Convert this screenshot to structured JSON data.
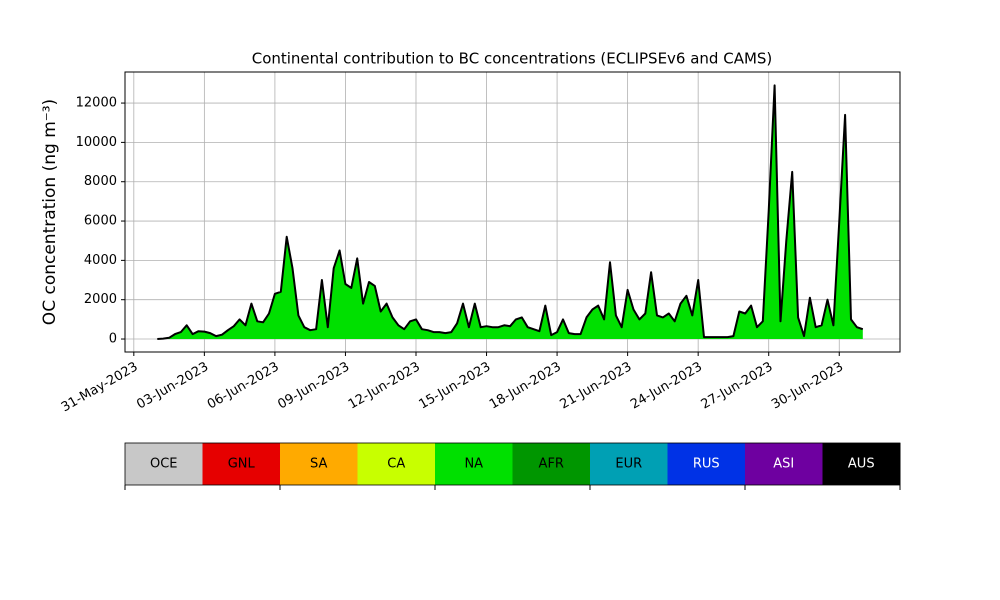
{
  "chart_data": {
    "type": "area",
    "title": "Continental contribution to BC concentrations (ECLIPSEv6 and CAMS)",
    "y_label": "OC concentration (ng m⁻³)",
    "x": [
      "2023-06-01 00:00",
      "2023-06-01 06:00",
      "2023-06-01 12:00",
      "2023-06-01 18:00",
      "2023-06-02 00:00",
      "2023-06-02 06:00",
      "2023-06-02 12:00",
      "2023-06-02 18:00",
      "2023-06-03 00:00",
      "2023-06-03 06:00",
      "2023-06-03 12:00",
      "2023-06-03 18:00",
      "2023-06-04 00:00",
      "2023-06-04 06:00",
      "2023-06-04 12:00",
      "2023-06-04 18:00",
      "2023-06-05 00:00",
      "2023-06-05 06:00",
      "2023-06-05 12:00",
      "2023-06-05 18:00",
      "2023-06-06 00:00",
      "2023-06-06 06:00",
      "2023-06-06 12:00",
      "2023-06-06 18:00",
      "2023-06-07 00:00",
      "2023-06-07 06:00",
      "2023-06-07 12:00",
      "2023-06-07 18:00",
      "2023-06-08 00:00",
      "2023-06-08 06:00",
      "2023-06-08 12:00",
      "2023-06-08 18:00",
      "2023-06-09 00:00",
      "2023-06-09 06:00",
      "2023-06-09 12:00",
      "2023-06-09 18:00",
      "2023-06-10 00:00",
      "2023-06-10 06:00",
      "2023-06-10 12:00",
      "2023-06-10 18:00",
      "2023-06-11 00:00",
      "2023-06-11 06:00",
      "2023-06-11 12:00",
      "2023-06-11 18:00",
      "2023-06-12 00:00",
      "2023-06-12 06:00",
      "2023-06-12 12:00",
      "2023-06-12 18:00",
      "2023-06-13 00:00",
      "2023-06-13 06:00",
      "2023-06-13 12:00",
      "2023-06-13 18:00",
      "2023-06-14 00:00",
      "2023-06-14 06:00",
      "2023-06-14 12:00",
      "2023-06-14 18:00",
      "2023-06-15 00:00",
      "2023-06-15 06:00",
      "2023-06-15 12:00",
      "2023-06-15 18:00",
      "2023-06-16 00:00",
      "2023-06-16 06:00",
      "2023-06-16 12:00",
      "2023-06-16 18:00",
      "2023-06-17 00:00",
      "2023-06-17 06:00",
      "2023-06-17 12:00",
      "2023-06-17 18:00",
      "2023-06-18 00:00",
      "2023-06-18 06:00",
      "2023-06-18 12:00",
      "2023-06-18 18:00",
      "2023-06-19 00:00",
      "2023-06-19 06:00",
      "2023-06-19 12:00",
      "2023-06-19 18:00",
      "2023-06-20 00:00",
      "2023-06-20 06:00",
      "2023-06-20 12:00",
      "2023-06-20 18:00",
      "2023-06-21 00:00",
      "2023-06-21 06:00",
      "2023-06-21 12:00",
      "2023-06-21 18:00",
      "2023-06-22 00:00",
      "2023-06-22 06:00",
      "2023-06-22 12:00",
      "2023-06-22 18:00",
      "2023-06-23 00:00",
      "2023-06-23 06:00",
      "2023-06-23 12:00",
      "2023-06-23 18:00",
      "2023-06-24 00:00",
      "2023-06-24 06:00",
      "2023-06-24 12:00",
      "2023-06-24 18:00",
      "2023-06-25 00:00",
      "2023-06-25 06:00",
      "2023-06-25 12:00",
      "2023-06-25 18:00",
      "2023-06-26 00:00",
      "2023-06-26 06:00",
      "2023-06-26 12:00",
      "2023-06-26 18:00",
      "2023-06-27 00:00",
      "2023-06-27 06:00",
      "2023-06-27 12:00",
      "2023-06-27 18:00",
      "2023-06-28 00:00",
      "2023-06-28 06:00",
      "2023-06-28 12:00",
      "2023-06-28 18:00",
      "2023-06-29 00:00",
      "2023-06-29 06:00",
      "2023-06-29 12:00",
      "2023-06-29 18:00",
      "2023-06-30 00:00",
      "2023-06-30 06:00",
      "2023-06-30 12:00",
      "2023-06-30 18:00",
      "2023-07-01 00:00"
    ],
    "series": [
      {
        "name": "NA",
        "color": "#00e000",
        "values": [
          0,
          20,
          60,
          250,
          350,
          700,
          250,
          400,
          380,
          300,
          150,
          220,
          450,
          650,
          1000,
          700,
          1800,
          900,
          850,
          1300,
          2300,
          2400,
          5200,
          3600,
          1200,
          600,
          450,
          500,
          3000,
          600,
          3600,
          4500,
          2800,
          2600,
          4100,
          1800,
          2900,
          2700,
          1400,
          1800,
          1100,
          700,
          500,
          900,
          1000,
          500,
          450,
          350,
          350,
          300,
          350,
          800,
          1800,
          600,
          1800,
          600,
          650,
          600,
          600,
          700,
          650,
          1000,
          1100,
          600,
          500,
          400,
          1700,
          200,
          350,
          1000,
          300,
          250,
          250,
          1100,
          1500,
          1700,
          1000,
          3900,
          1200,
          600,
          2500,
          1500,
          1000,
          1300,
          3400,
          1200,
          1100,
          1300,
          900,
          1800,
          2200,
          1200,
          3000,
          100,
          100,
          100,
          100,
          100,
          150,
          1400,
          1300,
          1700,
          600,
          900,
          6500,
          12900,
          900,
          5000,
          8500,
          1100,
          150,
          2100,
          600,
          700,
          2000,
          700,
          6000,
          11400,
          1000,
          600,
          500
        ]
      }
    ],
    "outline_color": "#000000",
    "legend": [
      {
        "name": "OCE",
        "color": "#c8c8c8"
      },
      {
        "name": "GNL",
        "color": "#e60000"
      },
      {
        "name": "SA",
        "color": "#ffaa00"
      },
      {
        "name": "CA",
        "color": "#c8ff00"
      },
      {
        "name": "NA",
        "color": "#00e000"
      },
      {
        "name": "AFR",
        "color": "#009600"
      },
      {
        "name": "EUR",
        "color": "#00a0b4"
      },
      {
        "name": "RUS",
        "color": "#0032e6"
      },
      {
        "name": "ASI",
        "color": "#6e00a0"
      },
      {
        "name": "AUS",
        "color": "#000000"
      }
    ],
    "xlim": [
      "2023-05-30 15:00",
      "2023-07-02 14:00"
    ],
    "xticks": [
      {
        "value": "2023-05-31 00:00",
        "label": "31-May-2023"
      },
      {
        "value": "2023-06-03 00:00",
        "label": "03-Jun-2023"
      },
      {
        "value": "2023-06-06 00:00",
        "label": "06-Jun-2023"
      },
      {
        "value": "2023-06-09 00:00",
        "label": "09-Jun-2023"
      },
      {
        "value": "2023-06-12 00:00",
        "label": "12-Jun-2023"
      },
      {
        "value": "2023-06-15 00:00",
        "label": "15-Jun-2023"
      },
      {
        "value": "2023-06-18 00:00",
        "label": "18-Jun-2023"
      },
      {
        "value": "2023-06-21 00:00",
        "label": "21-Jun-2023"
      },
      {
        "value": "2023-06-24 00:00",
        "label": "24-Jun-2023"
      },
      {
        "value": "2023-06-27 00:00",
        "label": "27-Jun-2023"
      },
      {
        "value": "2023-06-30 00:00",
        "label": "30-Jun-2023"
      }
    ],
    "ylim": [
      -660,
      13580
    ],
    "yticks": [
      0,
      2000,
      4000,
      6000,
      8000,
      10000,
      12000
    ],
    "grid": true
  }
}
